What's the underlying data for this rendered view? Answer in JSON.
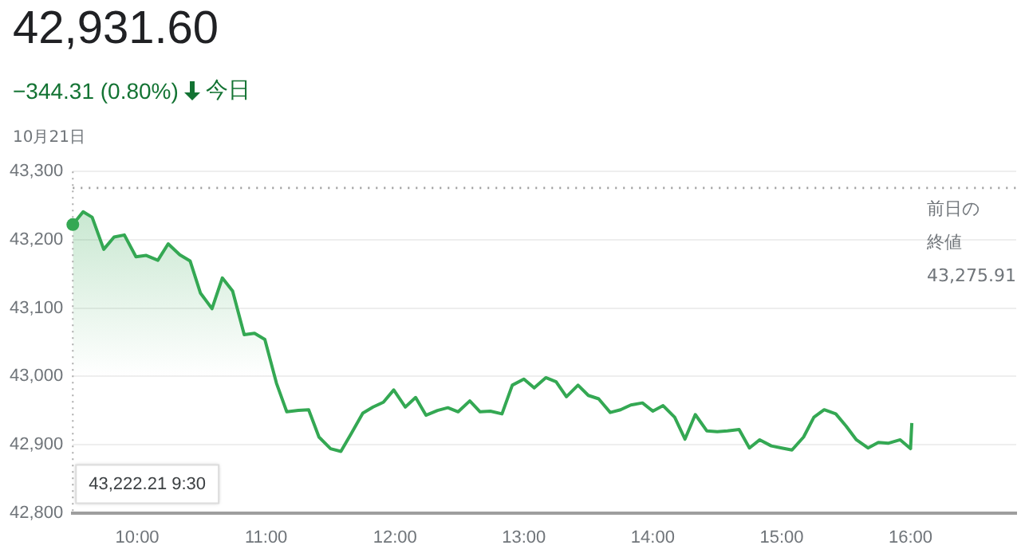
{
  "chart_data": {
    "type": "area",
    "title": "42,931.60",
    "subtitle": "−344.31 (0.80%)",
    "annotations": [
      "今日",
      "10月21日",
      "43,222.21 9:30"
    ],
    "x": [
      9.5,
      9.58,
      9.65,
      9.74,
      9.82,
      9.9,
      9.99,
      10.07,
      10.16,
      10.24,
      10.33,
      10.41,
      10.49,
      10.58,
      10.66,
      10.74,
      10.83,
      10.91,
      10.99,
      11.08,
      11.16,
      11.25,
      11.33,
      11.41,
      11.5,
      11.58,
      11.66,
      11.75,
      11.83,
      11.91,
      11.99,
      12.08,
      12.16,
      12.24,
      12.33,
      12.41,
      12.49,
      12.58,
      12.66,
      12.74,
      12.83,
      12.91,
      13.0,
      13.08,
      13.17,
      13.25,
      13.33,
      13.42,
      13.5,
      13.58,
      13.67,
      13.75,
      13.83,
      13.92,
      14.0,
      14.08,
      14.17,
      14.25,
      14.33,
      14.42,
      14.5,
      14.58,
      14.67,
      14.75,
      14.83,
      14.92,
      15.0,
      15.08,
      15.17,
      15.25,
      15.33,
      15.42,
      15.5,
      15.58,
      15.67,
      15.75,
      15.83,
      15.92,
      16.0,
      16.01
    ],
    "series": [
      {
        "color": "#34a853",
        "values": [
          43222.21,
          43241,
          43233,
          43186,
          43204,
          43207,
          43175,
          43177,
          43170,
          43194,
          43178,
          43169,
          43122,
          43099,
          43144,
          43125,
          43061,
          43063,
          43054,
          42990,
          42948,
          42950,
          42951,
          42911,
          42894,
          42890,
          42916,
          42946,
          42955,
          42962,
          42980,
          42955,
          42969,
          42943,
          42950,
          42954,
          42948,
          42964,
          42948,
          42949,
          42945,
          42987,
          42996,
          42983,
          42998,
          42992,
          42970,
          42987,
          42972,
          42967,
          42947,
          42951,
          42958,
          42961,
          42949,
          42957,
          42940,
          42908,
          42944,
          42920,
          42919,
          42920,
          42922,
          42895,
          42907,
          42898,
          42895,
          42892,
          42911,
          42940,
          42951,
          42945,
          42927,
          42907,
          42895,
          42903,
          42902,
          42907,
          42894,
          42931.6
        ]
      }
    ],
    "xlim": [
      9.5,
      16.82
    ],
    "xticks": [
      {
        "value": 10,
        "label": "10:00"
      },
      {
        "value": 11,
        "label": "11:00"
      },
      {
        "value": 12,
        "label": "12:00"
      },
      {
        "value": 13,
        "label": "13:00"
      },
      {
        "value": 14,
        "label": "14:00"
      },
      {
        "value": 15,
        "label": "15:00"
      },
      {
        "value": 16,
        "label": "16:00"
      }
    ],
    "ylim": [
      42800,
      43300
    ],
    "yticks": [
      {
        "value": 42800,
        "label": "42,800"
      },
      {
        "value": 42900,
        "label": "42,900"
      },
      {
        "value": 43000,
        "label": "43,000"
      },
      {
        "value": 43100,
        "label": "43,100"
      },
      {
        "value": 43200,
        "label": "43,200"
      },
      {
        "value": 43300,
        "label": "43,300"
      }
    ],
    "ref_lines": [
      {
        "axis": "y",
        "value": 43275.91,
        "label": "前日の終値 43,275.91",
        "line_style": "dotted",
        "color": "#9e9e9e"
      }
    ],
    "grid": "y",
    "legend": false,
    "marker": "none",
    "line_style": "solid"
  }
}
